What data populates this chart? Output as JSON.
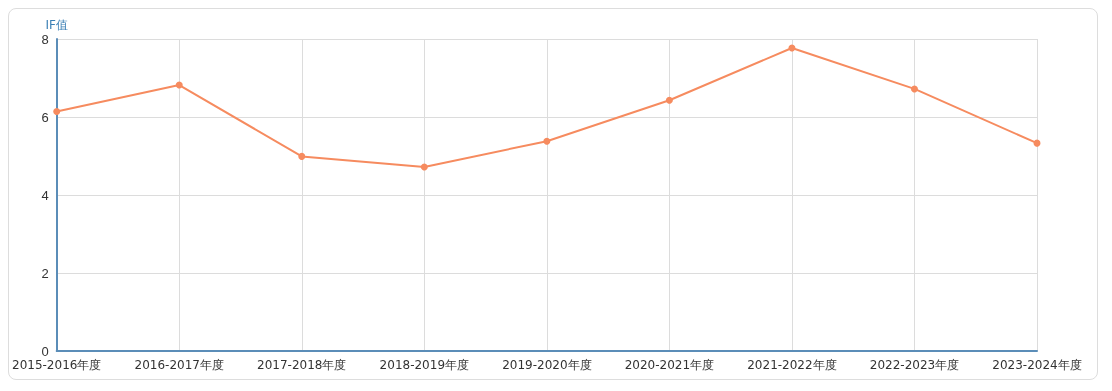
{
  "chart_data": {
    "type": "line",
    "ylabel": "IF值",
    "categories": [
      "2015-2016年度",
      "2016-2017年度",
      "2017-2018年度",
      "2018-2019年度",
      "2019-2020年度",
      "2020-2021年度",
      "2021-2022年度",
      "2022-2023年度",
      "2023-2024年度"
    ],
    "series": [
      {
        "color": "#f68b5f",
        "values": [
          6.14,
          6.82,
          4.99,
          4.72,
          5.38,
          6.43,
          7.77,
          6.72,
          5.33
        ]
      }
    ],
    "ylim": [
      0,
      8
    ],
    "yticks": [
      0,
      2,
      4,
      6,
      8
    ],
    "grid": true,
    "marker": "circle",
    "line_style": "solid"
  }
}
